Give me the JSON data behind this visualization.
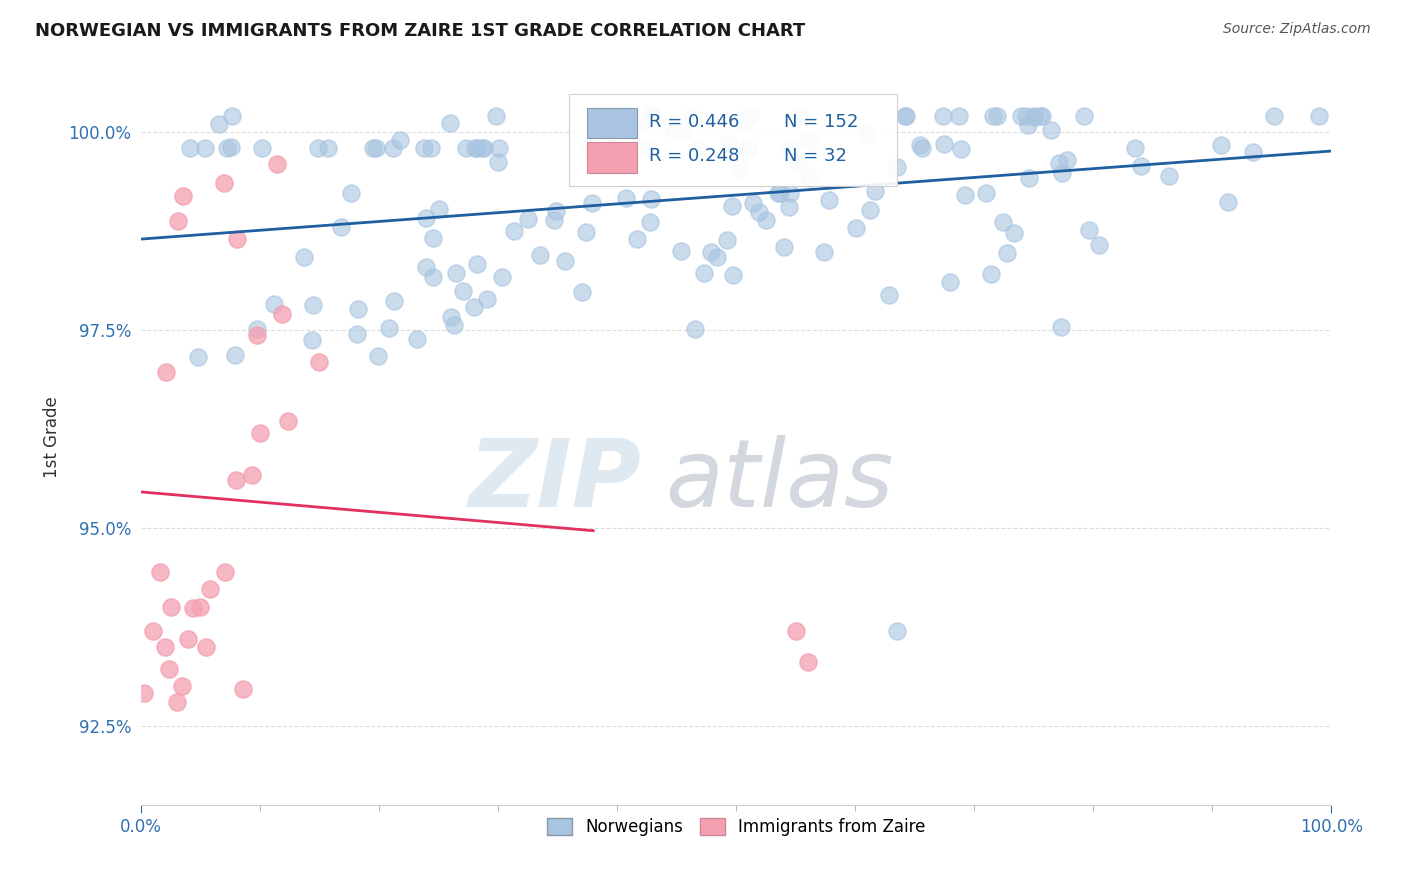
{
  "title": "NORWEGIAN VS IMMIGRANTS FROM ZAIRE 1ST GRADE CORRELATION CHART",
  "source": "Source: ZipAtlas.com",
  "ylabel": "1st Grade",
  "xlim": [
    0.0,
    1.0
  ],
  "ylim": [
    0.915,
    1.008
  ],
  "y_ticks": [
    0.925,
    0.95,
    0.975,
    1.0
  ],
  "y_tick_labels": [
    "92.5%",
    "95.0%",
    "97.5%",
    "100.0%"
  ],
  "x_tick_labels": [
    "0.0%",
    "100.0%"
  ],
  "legend_R_norwegian": "R = 0.446",
  "legend_N_norwegian": "N = 152",
  "legend_R_zaire": "R = 0.248",
  "legend_N_zaire": "N = 32",
  "norwegian_color": "#a8c4e0",
  "zaire_color": "#f4a0b0",
  "norwegian_line_color": "#2060a0",
  "zaire_line_color": "#e03060",
  "watermark_zip": "ZIP",
  "watermark_atlas": "atlas",
  "background_color": "#ffffff",
  "grid_color": "#dddddd",
  "legend_bottom_labels": [
    "Norwegians",
    "Immigrants from Zaire"
  ]
}
